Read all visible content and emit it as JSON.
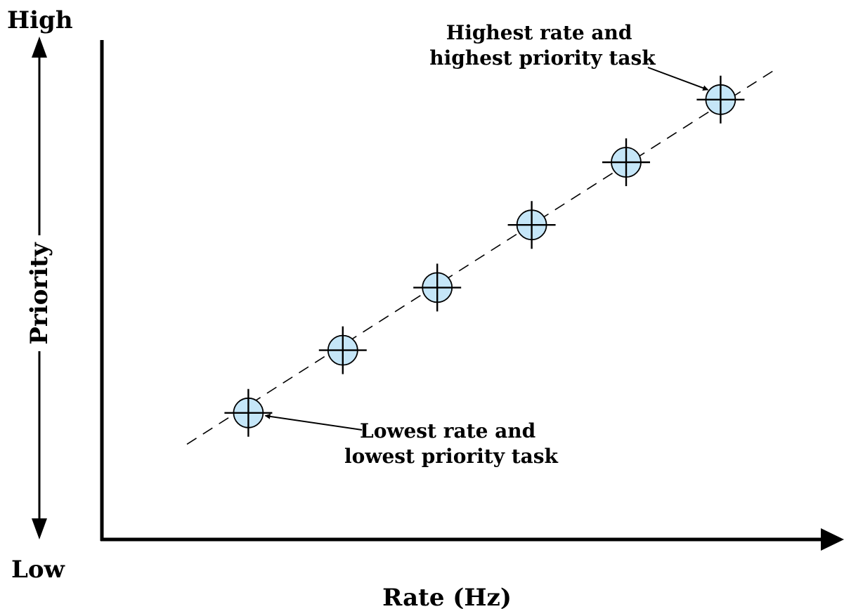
{
  "chart_data": {
    "type": "scatter",
    "title": "",
    "xlabel": "Rate (Hz)",
    "ylabel": "Priority",
    "y_high_label": "High",
    "y_low_label": "Low",
    "xlim": [
      0,
      7
    ],
    "ylim": [
      0,
      7
    ],
    "x": [
      1,
      2,
      3,
      4,
      5,
      6
    ],
    "y": [
      1,
      2,
      3,
      4,
      5,
      6
    ],
    "trend_line": {
      "style": "dashed",
      "x": [
        0.35,
        6.6
      ],
      "y": [
        0.5,
        6.5
      ]
    },
    "grid": false,
    "annotations": [
      {
        "lines": [
          "Highest rate and",
          "highest priority task"
        ],
        "x": 6,
        "y": 6
      },
      {
        "lines": [
          "Lowest rate and",
          "lowest priority task"
        ],
        "x": 1,
        "y": 1
      }
    ],
    "colors": {
      "marker_fill": "#c5e6f8",
      "line": "#000000"
    }
  }
}
